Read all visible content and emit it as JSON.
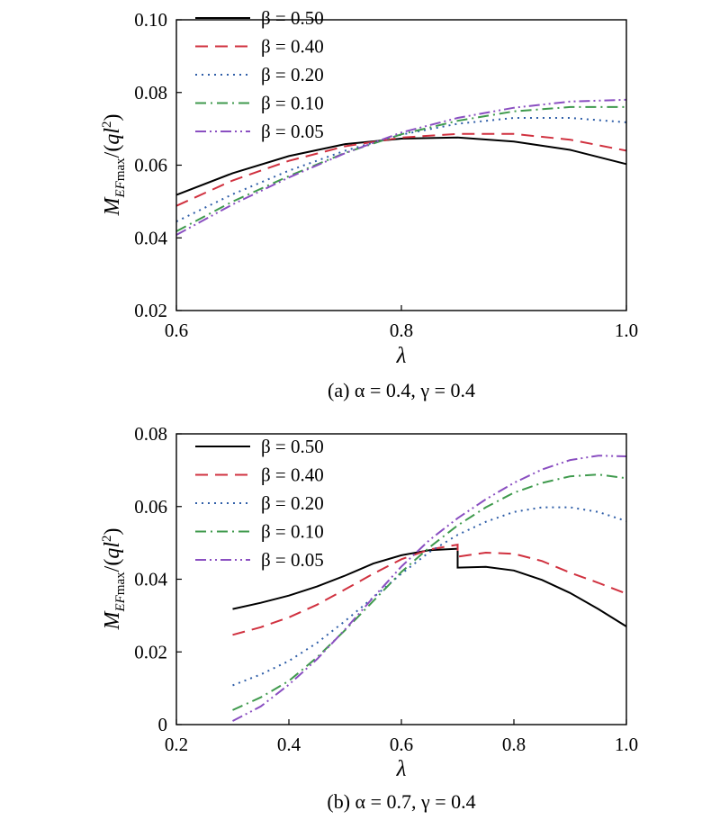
{
  "chart_data": [
    {
      "id": "a",
      "type": "line",
      "caption": "(a) α = 0.4, γ = 0.4",
      "xlabel": "λ",
      "ylabel": "M_EFmax/(ql²)",
      "xlim": [
        0.6,
        1.0
      ],
      "ylim": [
        0.02,
        0.1
      ],
      "xticks": [
        "0.6",
        "0.8",
        "1.0"
      ],
      "yticks": [
        "0.02",
        "0.04",
        "0.06",
        "0.08",
        "0.10"
      ],
      "grid": false,
      "legend_position": "top-left",
      "series": [
        {
          "name": "β = 0.50",
          "color": "#000000",
          "dash": "solid",
          "x": [
            0.6,
            0.65,
            0.7,
            0.75,
            0.8,
            0.85,
            0.9,
            0.95,
            1.0
          ],
          "y": [
            0.0518,
            0.0578,
            0.0625,
            0.0658,
            0.0673,
            0.0676,
            0.0665,
            0.0642,
            0.0603
          ]
        },
        {
          "name": "β = 0.40",
          "color": "#d0313f",
          "dash": "dash",
          "x": [
            0.6,
            0.65,
            0.7,
            0.75,
            0.8,
            0.85,
            0.9,
            0.95,
            1.0
          ],
          "y": [
            0.0488,
            0.0558,
            0.0612,
            0.0652,
            0.0676,
            0.0686,
            0.0686,
            0.067,
            0.064
          ]
        },
        {
          "name": "β = 0.20",
          "color": "#2f5ea8",
          "dash": "dot",
          "x": [
            0.6,
            0.65,
            0.7,
            0.75,
            0.8,
            0.85,
            0.9,
            0.95,
            1.0
          ],
          "y": [
            0.0445,
            0.052,
            0.0585,
            0.064,
            0.0684,
            0.0714,
            0.073,
            0.073,
            0.0718
          ]
        },
        {
          "name": "β = 0.10",
          "color": "#3f9a4d",
          "dash": "dashdot",
          "x": [
            0.6,
            0.65,
            0.7,
            0.75,
            0.8,
            0.85,
            0.9,
            0.95,
            1.0
          ],
          "y": [
            0.0418,
            0.05,
            0.057,
            0.0634,
            0.0685,
            0.0722,
            0.0748,
            0.076,
            0.076
          ]
        },
        {
          "name": "β = 0.05",
          "color": "#8a4fc1",
          "dash": "dashdotdot",
          "x": [
            0.6,
            0.65,
            0.7,
            0.75,
            0.8,
            0.85,
            0.9,
            0.95,
            1.0
          ],
          "y": [
            0.0408,
            0.0492,
            0.0566,
            0.0633,
            0.069,
            0.073,
            0.0758,
            0.0775,
            0.078
          ]
        }
      ]
    },
    {
      "id": "b",
      "type": "line",
      "caption": "(b) α = 0.7, γ = 0.4",
      "xlabel": "λ",
      "ylabel": "M_EFmax/(ql²)",
      "xlim": [
        0.2,
        1.0
      ],
      "ylim": [
        0,
        0.08
      ],
      "xticks": [
        "0.2",
        "0.4",
        "0.6",
        "0.8",
        "1.0"
      ],
      "yticks": [
        "0",
        "0.02",
        "0.04",
        "0.06",
        "0.08"
      ],
      "grid": false,
      "legend_position": "top-left",
      "series": [
        {
          "name": "β = 0.50",
          "color": "#000000",
          "dash": "solid",
          "x": [
            0.3,
            0.35,
            0.4,
            0.45,
            0.5,
            0.55,
            0.6,
            0.65,
            0.7,
            0.7,
            0.75,
            0.8,
            0.85,
            0.9,
            0.95,
            1.0
          ],
          "y": [
            0.0318,
            0.0335,
            0.0355,
            0.038,
            0.041,
            0.0443,
            0.0466,
            0.048,
            0.0484,
            0.0432,
            0.0434,
            0.0424,
            0.0398,
            0.0362,
            0.0318,
            0.027
          ]
        },
        {
          "name": "β = 0.40",
          "color": "#d0313f",
          "dash": "dash",
          "x": [
            0.3,
            0.35,
            0.4,
            0.45,
            0.5,
            0.55,
            0.6,
            0.65,
            0.7,
            0.7,
            0.75,
            0.8,
            0.85,
            0.9,
            0.95,
            1.0
          ],
          "y": [
            0.0247,
            0.0268,
            0.0295,
            0.033,
            0.0372,
            0.0415,
            0.0455,
            0.0482,
            0.0495,
            0.0462,
            0.0473,
            0.047,
            0.045,
            0.0418,
            0.039,
            0.036
          ]
        },
        {
          "name": "β = 0.20",
          "color": "#2f5ea8",
          "dash": "dot",
          "x": [
            0.3,
            0.35,
            0.4,
            0.45,
            0.5,
            0.55,
            0.6,
            0.65,
            0.7,
            0.75,
            0.8,
            0.85,
            0.9,
            0.95,
            1.0
          ],
          "y": [
            0.0108,
            0.0138,
            0.0175,
            0.0225,
            0.0285,
            0.035,
            0.0415,
            0.0475,
            0.0522,
            0.0558,
            0.0585,
            0.0598,
            0.0598,
            0.0585,
            0.056
          ]
        },
        {
          "name": "β = 0.10",
          "color": "#3f9a4d",
          "dash": "dashdot",
          "x": [
            0.3,
            0.35,
            0.4,
            0.45,
            0.5,
            0.55,
            0.6,
            0.65,
            0.7,
            0.75,
            0.8,
            0.85,
            0.9,
            0.95,
            1.0
          ],
          "y": [
            0.004,
            0.0075,
            0.012,
            0.0185,
            0.026,
            0.034,
            0.042,
            0.0488,
            0.0548,
            0.0598,
            0.0638,
            0.0665,
            0.0683,
            0.0688,
            0.0678
          ]
        },
        {
          "name": "β = 0.05",
          "color": "#8a4fc1",
          "dash": "dashdotdot",
          "x": [
            0.3,
            0.35,
            0.4,
            0.45,
            0.5,
            0.55,
            0.6,
            0.65,
            0.7,
            0.75,
            0.8,
            0.85,
            0.9,
            0.95,
            1.0
          ],
          "y": [
            0.001,
            0.005,
            0.011,
            0.018,
            0.0262,
            0.035,
            0.0435,
            0.0508,
            0.0568,
            0.062,
            0.0665,
            0.0702,
            0.0728,
            0.074,
            0.0738
          ]
        }
      ]
    }
  ]
}
